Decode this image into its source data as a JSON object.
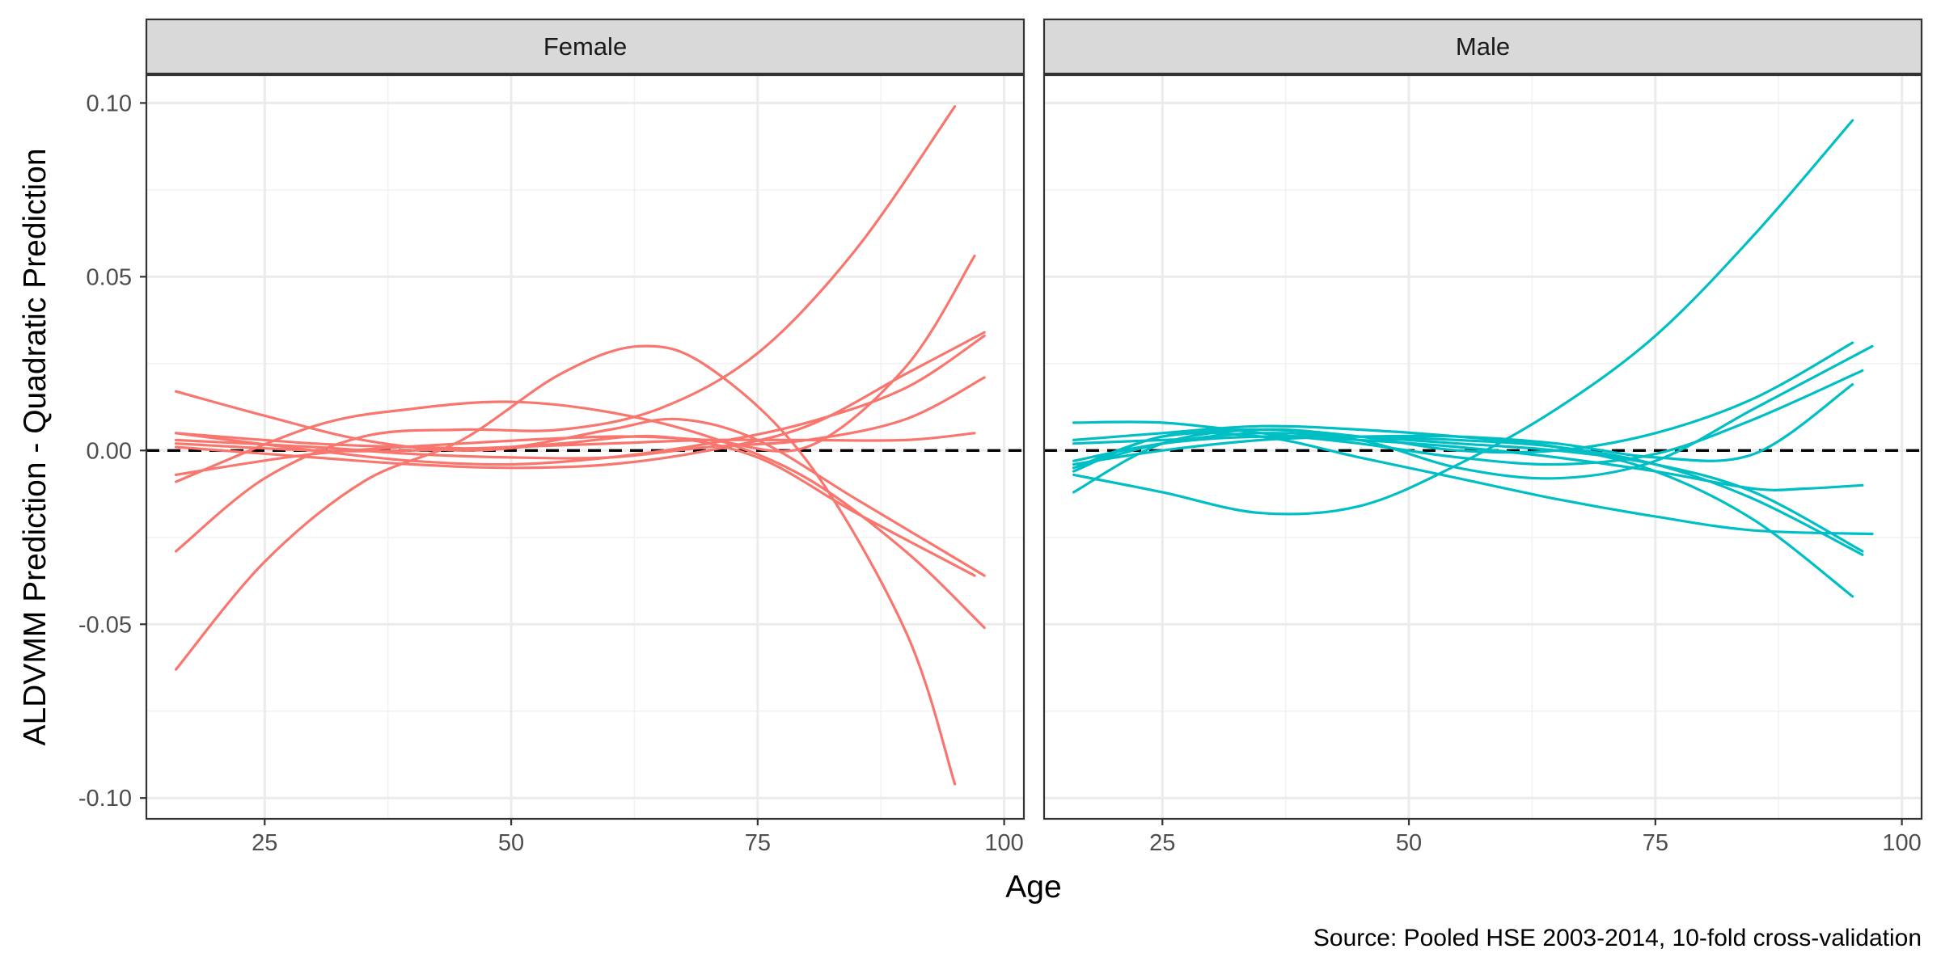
{
  "chart_data": {
    "type": "line",
    "ylabel": "ALDVMM Prediction - Quadratic Prediction",
    "xlabel": "Age",
    "caption": "Source: Pooled HSE 2003-2014, 10-fold cross-validation",
    "xlim": [
      13,
      102
    ],
    "ylim": [
      -0.106,
      0.108
    ],
    "x_ticks": [
      25,
      50,
      75,
      100
    ],
    "x_tick_labels": [
      "25",
      "50",
      "75",
      "100"
    ],
    "y_ticks": [
      -0.1,
      -0.05,
      0.0,
      0.05,
      0.1
    ],
    "y_tick_labels": [
      "-0.10",
      "-0.05",
      "0.00",
      "0.05",
      "0.10"
    ],
    "reference_line": {
      "y": 0,
      "style": "dashed"
    },
    "grid": true,
    "facets": [
      {
        "label": "Female",
        "color": "#F8766D",
        "series": [
          {
            "x": [
              16,
              25,
              35,
              45,
              55,
              63,
              70,
              80,
              90,
              95
            ],
            "values": [
              -0.063,
              -0.032,
              -0.009,
              0.003,
              0.022,
              0.03,
              0.024,
              -0.003,
              -0.052,
              -0.096
            ]
          },
          {
            "x": [
              16,
              25,
              35,
              45,
              55,
              65,
              75,
              85,
              95
            ],
            "values": [
              -0.029,
              -0.008,
              0.004,
              0.006,
              0.006,
              0.012,
              0.028,
              0.058,
              0.099
            ]
          },
          {
            "x": [
              16,
              25,
              35,
              45,
              55,
              65,
              75,
              85,
              97
            ],
            "values": [
              0.017,
              0.01,
              0.003,
              0.0,
              0.002,
              0.004,
              -0.002,
              -0.018,
              -0.036
            ]
          },
          {
            "x": [
              16,
              30,
              40,
              50,
              60,
              70,
              80,
              90,
              98
            ],
            "values": [
              -0.009,
              0.007,
              0.012,
              0.014,
              0.011,
              0.004,
              -0.008,
              -0.029,
              -0.051
            ]
          },
          {
            "x": [
              16,
              30,
              40,
              50,
              60,
              67,
              75,
              85,
              98
            ],
            "values": [
              0.005,
              0.002,
              0.001,
              0.001,
              0.006,
              0.009,
              0.003,
              -0.014,
              -0.036
            ]
          },
          {
            "x": [
              16,
              30,
              45,
              60,
              70,
              80,
              90,
              97
            ],
            "values": [
              -0.007,
              -0.001,
              0.002,
              0.004,
              0.003,
              0.001,
              0.024,
              0.056
            ]
          },
          {
            "x": [
              16,
              30,
              40,
              50,
              60,
              70,
              80,
              90,
              98
            ],
            "values": [
              0.005,
              0.0,
              -0.003,
              -0.004,
              -0.002,
              0.002,
              0.008,
              0.018,
              0.033
            ]
          },
          {
            "x": [
              16,
              30,
              40,
              50,
              60,
              70,
              80,
              90,
              98
            ],
            "values": [
              0.001,
              -0.002,
              -0.004,
              -0.005,
              -0.004,
              0.0,
              0.007,
              0.022,
              0.034
            ]
          },
          {
            "x": [
              16,
              30,
              40,
              50,
              60,
              70,
              80,
              90,
              98
            ],
            "values": [
              0.003,
              0.001,
              -0.001,
              -0.002,
              -0.002,
              0.001,
              0.003,
              0.009,
              0.021
            ]
          },
          {
            "x": [
              16,
              30,
              40,
              50,
              60,
              70,
              80,
              90,
              97
            ],
            "values": [
              0.002,
              0.0,
              0.0,
              0.001,
              0.002,
              0.003,
              0.003,
              0.003,
              0.005
            ]
          }
        ]
      },
      {
        "label": "Male",
        "color": "#00BFC4",
        "series": [
          {
            "x": [
              16,
              25,
              35,
              45,
              55,
              65,
              75,
              85,
              95
            ],
            "values": [
              -0.007,
              -0.012,
              -0.018,
              -0.016,
              -0.004,
              0.012,
              0.033,
              0.062,
              0.095
            ]
          },
          {
            "x": [
              16,
              25,
              35,
              45,
              55,
              65,
              75,
              85,
              95
            ],
            "values": [
              -0.012,
              0.002,
              0.006,
              0.004,
              0.0,
              0.0,
              0.005,
              0.015,
              0.031
            ]
          },
          {
            "x": [
              16,
              25,
              35,
              45,
              55,
              65,
              75,
              85,
              97
            ],
            "values": [
              -0.005,
              0.002,
              0.005,
              0.003,
              -0.005,
              -0.008,
              -0.003,
              0.012,
              0.03
            ]
          },
          {
            "x": [
              16,
              25,
              35,
              45,
              55,
              65,
              75,
              85,
              96
            ],
            "values": [
              0.008,
              0.008,
              0.005,
              0.002,
              -0.002,
              -0.004,
              -0.001,
              0.009,
              0.023
            ]
          },
          {
            "x": [
              16,
              25,
              35,
              45,
              55,
              65,
              75,
              85,
              95
            ],
            "values": [
              -0.004,
              0.0,
              0.003,
              0.004,
              0.004,
              0.002,
              -0.002,
              -0.001,
              0.019
            ]
          },
          {
            "x": [
              16,
              25,
              35,
              45,
              55,
              65,
              75,
              85,
              95
            ],
            "values": [
              0.003,
              0.005,
              0.007,
              0.006,
              0.004,
              0.001,
              -0.006,
              -0.02,
              -0.042
            ]
          },
          {
            "x": [
              16,
              25,
              35,
              45,
              55,
              65,
              75,
              85,
              96
            ],
            "values": [
              0.002,
              0.003,
              0.004,
              0.004,
              0.003,
              0.001,
              -0.004,
              -0.014,
              -0.03
            ]
          },
          {
            "x": [
              16,
              25,
              35,
              45,
              55,
              65,
              75,
              85,
              96
            ],
            "values": [
              -0.005,
              0.004,
              0.006,
              0.004,
              0.002,
              0.0,
              -0.004,
              -0.012,
              -0.029
            ]
          },
          {
            "x": [
              16,
              25,
              35,
              45,
              55,
              65,
              75,
              85,
              90,
              96
            ],
            "values": [
              -0.003,
              0.002,
              0.004,
              0.003,
              0.001,
              -0.002,
              -0.006,
              -0.011,
              -0.011,
              -0.01
            ]
          },
          {
            "x": [
              16,
              25,
              35,
              45,
              55,
              65,
              75,
              85,
              97
            ],
            "values": [
              -0.006,
              0.004,
              0.004,
              -0.002,
              -0.008,
              -0.014,
              -0.019,
              -0.023,
              -0.024
            ]
          }
        ]
      }
    ]
  }
}
